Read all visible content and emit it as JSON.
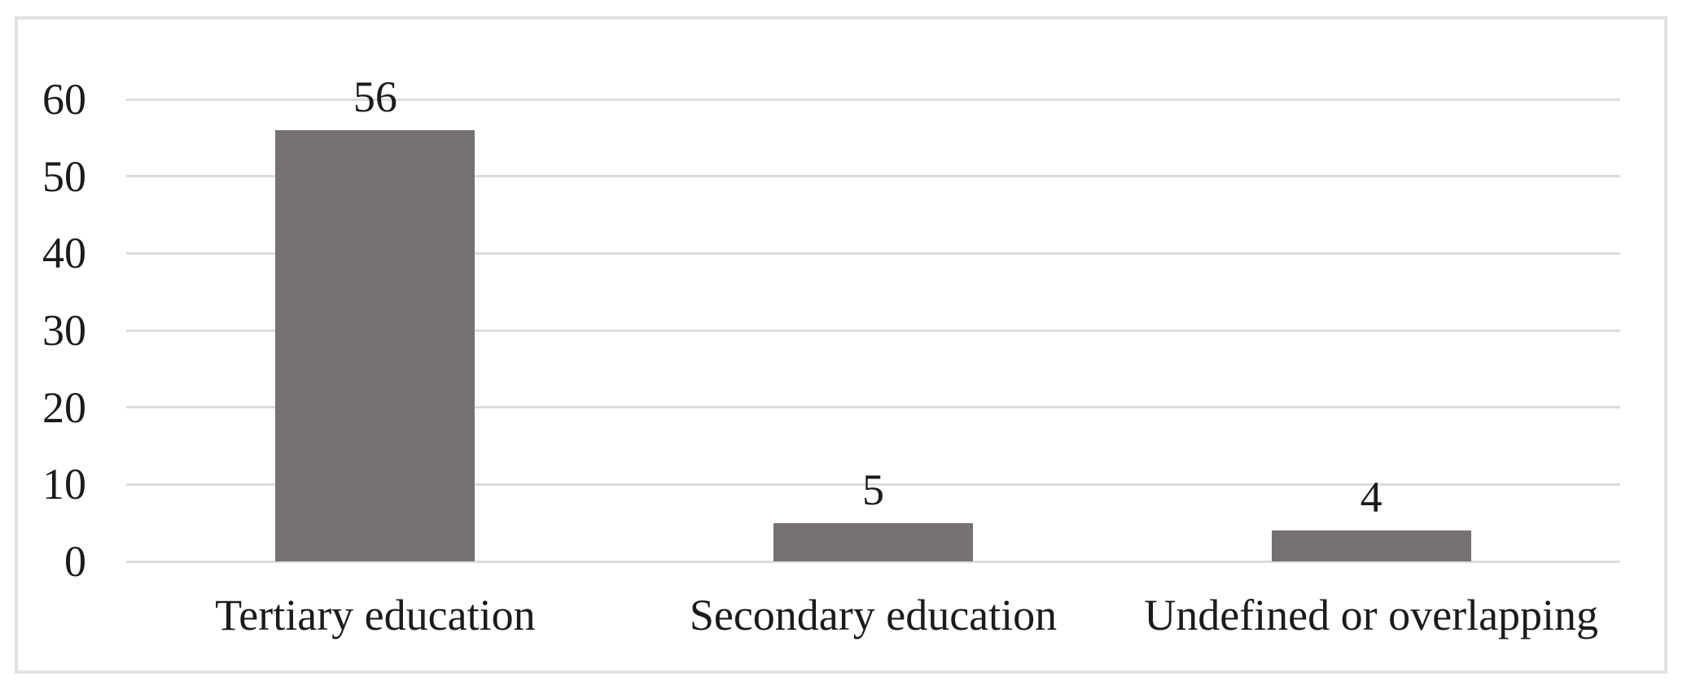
{
  "chart_data": {
    "type": "bar",
    "title": "",
    "xlabel": "",
    "ylabel": "",
    "categories": [
      "Tertiary education",
      "Secondary education",
      "Undefined or overlapping"
    ],
    "values": [
      56,
      5,
      4
    ],
    "data_labels": [
      "56",
      "5",
      "4"
    ],
    "y_ticks": [
      0,
      10,
      20,
      30,
      40,
      50,
      60
    ],
    "ylim": [
      0,
      60
    ],
    "grid": true,
    "legend": false,
    "colors": {
      "bar": "#757170",
      "gridline": "#dcdcdc",
      "frame_border": "#e2e2e2",
      "text": "#1b1b1b",
      "background": "#ffffff"
    }
  }
}
